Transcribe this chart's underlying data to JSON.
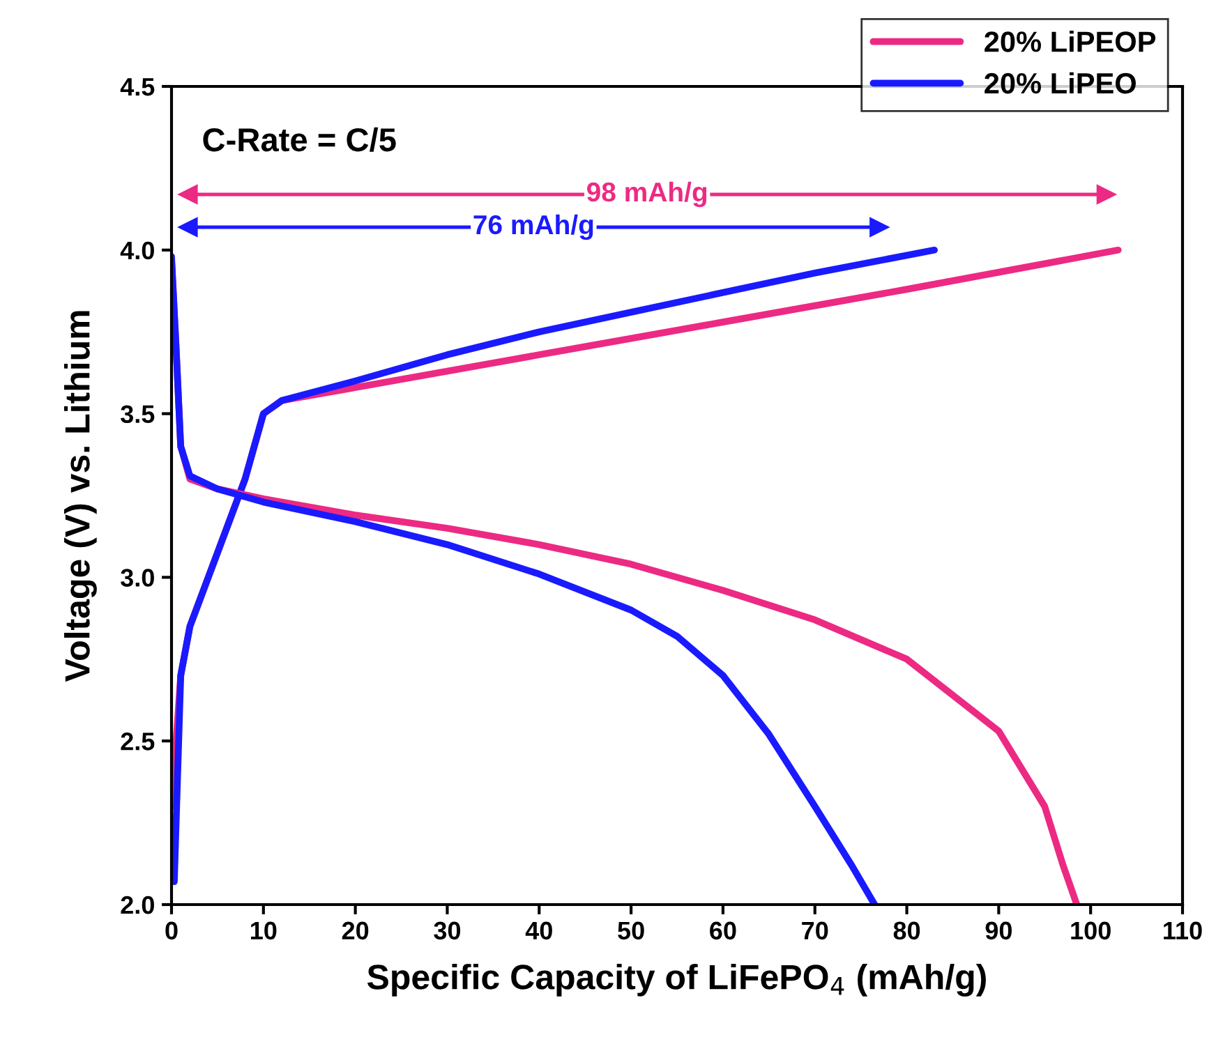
{
  "chart_data": {
    "type": "line",
    "xlabel": "Specific Capacity of LiFePO$_{4}$ (mAh/g)",
    "ylabel": "Voltage (V) vs. Lithium",
    "xlim": [
      0,
      110
    ],
    "xticks": [
      0,
      10,
      20,
      30,
      40,
      50,
      60,
      70,
      80,
      90,
      100,
      110
    ],
    "ylim": [
      2.0,
      4.5
    ],
    "yticks": [
      {
        "value": 2.0,
        "label": "2.0"
      },
      {
        "value": 2.5,
        "label": "2.5"
      },
      {
        "value": 3.0,
        "label": "3.0"
      },
      {
        "value": 3.5,
        "label": "3.5"
      },
      {
        "value": 4.0,
        "label": "4.0"
      },
      {
        "value": 4.5,
        "label": "4.5"
      }
    ],
    "legend": "top right",
    "grid": false,
    "line_style": "solid",
    "marker": "none",
    "series": [
      {
        "name": "20% LiPEOP",
        "color": "#ec2a83",
        "x": [
          0,
          1,
          2,
          4,
          6,
          8,
          10,
          12,
          40,
          60,
          80,
          103
        ],
        "values": [
          2.3,
          2.7,
          2.85,
          3.0,
          3.15,
          3.3,
          3.5,
          3.54,
          3.68,
          3.78,
          3.88,
          4.0
        ]
      },
      {
        "name": "20% LiPEO",
        "color": "#1a1aff",
        "x": [
          0.3,
          1,
          2,
          4,
          6,
          8,
          10,
          12,
          20,
          30,
          40,
          50,
          60,
          70,
          83
        ],
        "values": [
          2.07,
          2.7,
          2.85,
          3.0,
          3.15,
          3.3,
          3.5,
          3.54,
          3.6,
          3.68,
          3.75,
          3.81,
          3.87,
          3.93,
          4.0
        ]
      },
      {
        "color": "#ec2a83",
        "x": [
          0,
          0.5,
          1,
          2,
          5,
          10,
          20,
          30,
          40,
          50,
          60,
          70,
          80,
          90,
          95,
          97,
          98.5
        ],
        "values": [
          3.97,
          3.7,
          3.4,
          3.3,
          3.27,
          3.24,
          3.19,
          3.15,
          3.1,
          3.04,
          2.96,
          2.87,
          2.75,
          2.53,
          2.3,
          2.12,
          2.0
        ]
      },
      {
        "color": "#1a1aff",
        "x": [
          0,
          0.5,
          1,
          2,
          5,
          10,
          20,
          30,
          40,
          50,
          55,
          60,
          65,
          70,
          74,
          76.5
        ],
        "values": [
          3.98,
          3.7,
          3.4,
          3.31,
          3.27,
          3.23,
          3.17,
          3.1,
          3.01,
          2.9,
          2.82,
          2.7,
          2.52,
          2.3,
          2.12,
          2.0
        ]
      },
      {
        "color": "#ec2a83",
        "marker": "triangle",
        "x": [
          1.8,
          101.7
        ],
        "values": [
          4.17,
          4.17
        ]
      },
      {
        "color": "#1a1aff",
        "marker": "triangle",
        "x": [
          1.8,
          77
        ],
        "values": [
          4.07,
          4.07
        ]
      }
    ],
    "annotations": [
      "C-Rate = C/5",
      "98 mAh/g",
      "76 mAh/g"
    ]
  }
}
